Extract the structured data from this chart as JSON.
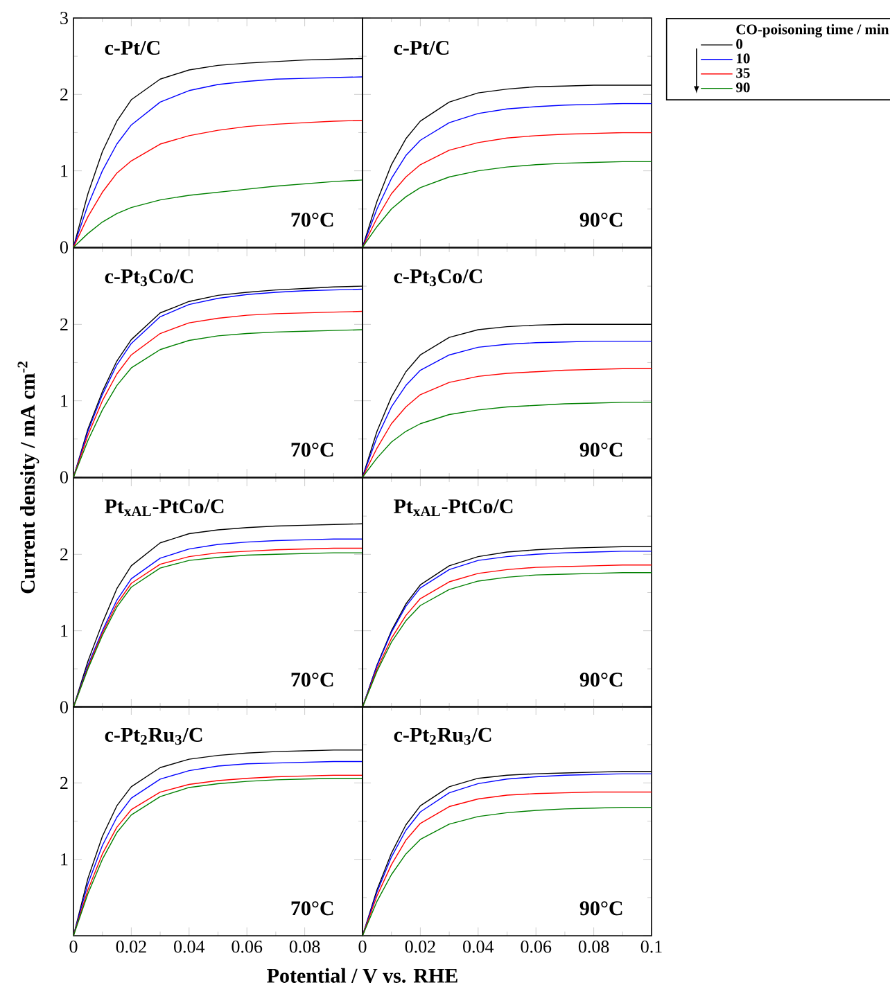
{
  "chart_data": [
    {
      "type": "line",
      "title": "c-Pt/C",
      "annotations": [
        "70°C"
      ],
      "ylabel": null,
      "x": [
        0,
        0.005,
        0.01,
        0.015,
        0.02,
        0.03,
        0.04,
        0.05,
        0.06,
        0.07,
        0.08,
        0.09,
        0.1
      ],
      "xlim": [
        0,
        0.1
      ],
      "ylim": [
        0,
        3
      ],
      "xticks": [
        0,
        0.02,
        0.04,
        0.06,
        0.08,
        0.1
      ],
      "yticks": [
        0,
        1,
        2,
        3
      ],
      "tick_labels": "y",
      "series": [
        {
          "color": "#000000",
          "values": [
            0,
            0.7,
            1.25,
            1.65,
            1.93,
            2.2,
            2.32,
            2.38,
            2.41,
            2.43,
            2.45,
            2.46,
            2.47
          ]
        },
        {
          "color": "#0000ff",
          "values": [
            0,
            0.55,
            1.0,
            1.35,
            1.6,
            1.9,
            2.05,
            2.13,
            2.17,
            2.2,
            2.21,
            2.22,
            2.23
          ]
        },
        {
          "color": "#ff0000",
          "values": [
            0,
            0.4,
            0.72,
            0.97,
            1.13,
            1.35,
            1.46,
            1.53,
            1.58,
            1.61,
            1.63,
            1.65,
            1.66
          ]
        },
        {
          "color": "#008000",
          "values": [
            0,
            0.18,
            0.33,
            0.44,
            0.52,
            0.62,
            0.68,
            0.72,
            0.76,
            0.8,
            0.83,
            0.86,
            0.88
          ]
        }
      ]
    },
    {
      "type": "line",
      "title": "c-Pt/C",
      "annotations": [
        "90°C"
      ],
      "legend": "top right",
      "legend_title": "CO-poisoning time / min",
      "x": [
        0,
        0.005,
        0.01,
        0.015,
        0.02,
        0.03,
        0.04,
        0.05,
        0.06,
        0.07,
        0.08,
        0.09,
        0.1
      ],
      "xlim": [
        0,
        0.1
      ],
      "ylim": [
        0,
        3
      ],
      "xticks": [
        0,
        0.02,
        0.04,
        0.06,
        0.08,
        0.1
      ],
      "yticks": [
        0,
        1,
        2,
        3
      ],
      "tick_labels": false,
      "series": [
        {
          "name": "0",
          "color": "#000000",
          "values": [
            0,
            0.6,
            1.08,
            1.42,
            1.65,
            1.9,
            2.02,
            2.07,
            2.1,
            2.11,
            2.12,
            2.12,
            2.12
          ]
        },
        {
          "name": "10",
          "color": "#0000ff",
          "values": [
            0,
            0.5,
            0.9,
            1.2,
            1.4,
            1.63,
            1.75,
            1.81,
            1.84,
            1.86,
            1.87,
            1.88,
            1.88
          ]
        },
        {
          "name": "35",
          "color": "#ff0000",
          "values": [
            0,
            0.38,
            0.7,
            0.92,
            1.08,
            1.27,
            1.37,
            1.43,
            1.46,
            1.48,
            1.49,
            1.5,
            1.5
          ]
        },
        {
          "name": "90",
          "color": "#008000",
          "values": [
            0,
            0.27,
            0.5,
            0.66,
            0.78,
            0.92,
            1.0,
            1.05,
            1.08,
            1.1,
            1.11,
            1.12,
            1.12
          ]
        }
      ]
    },
    {
      "type": "line",
      "title": "c-Pt$_{3}$Co/C",
      "annotations": [
        "70°C"
      ],
      "ylabel": "Current density / mA cm$^{-2}$",
      "x": [
        0,
        0.005,
        0.01,
        0.015,
        0.02,
        0.03,
        0.04,
        0.05,
        0.06,
        0.07,
        0.08,
        0.09,
        0.1
      ],
      "xlim": [
        0,
        0.1
      ],
      "ylim": [
        0,
        3
      ],
      "xticks": [
        0,
        0.02,
        0.04,
        0.06,
        0.08,
        0.1
      ],
      "yticks": [
        0,
        1,
        2
      ],
      "tick_labels": "y",
      "series": [
        {
          "color": "#000000",
          "values": [
            0,
            0.63,
            1.12,
            1.52,
            1.8,
            2.15,
            2.3,
            2.38,
            2.42,
            2.45,
            2.47,
            2.49,
            2.5
          ]
        },
        {
          "color": "#0000ff",
          "values": [
            0,
            0.6,
            1.08,
            1.47,
            1.75,
            2.1,
            2.26,
            2.34,
            2.39,
            2.42,
            2.44,
            2.45,
            2.46
          ]
        },
        {
          "color": "#ff0000",
          "values": [
            0,
            0.55,
            1.0,
            1.35,
            1.6,
            1.88,
            2.02,
            2.08,
            2.12,
            2.14,
            2.15,
            2.16,
            2.17
          ]
        },
        {
          "color": "#008000",
          "values": [
            0,
            0.48,
            0.88,
            1.2,
            1.43,
            1.67,
            1.79,
            1.85,
            1.88,
            1.9,
            1.91,
            1.92,
            1.93
          ]
        }
      ]
    },
    {
      "type": "line",
      "title": "c-Pt$_{3}$Co/C",
      "annotations": [
        "90°C"
      ],
      "x": [
        0,
        0.005,
        0.01,
        0.015,
        0.02,
        0.03,
        0.04,
        0.05,
        0.06,
        0.07,
        0.08,
        0.09,
        0.1
      ],
      "xlim": [
        0,
        0.1
      ],
      "ylim": [
        0,
        3
      ],
      "xticks": [
        0,
        0.02,
        0.04,
        0.06,
        0.08,
        0.1
      ],
      "yticks": [
        0,
        1,
        2,
        3
      ],
      "tick_labels": false,
      "series": [
        {
          "color": "#000000",
          "values": [
            0,
            0.6,
            1.05,
            1.38,
            1.6,
            1.83,
            1.93,
            1.97,
            1.99,
            2.0,
            2.0,
            2.0,
            2.0
          ]
        },
        {
          "color": "#0000ff",
          "values": [
            0,
            0.52,
            0.92,
            1.2,
            1.4,
            1.6,
            1.7,
            1.74,
            1.76,
            1.77,
            1.78,
            1.78,
            1.78
          ]
        },
        {
          "color": "#ff0000",
          "values": [
            0,
            0.38,
            0.7,
            0.92,
            1.08,
            1.24,
            1.32,
            1.36,
            1.38,
            1.4,
            1.41,
            1.42,
            1.42
          ]
        },
        {
          "color": "#008000",
          "values": [
            0,
            0.25,
            0.46,
            0.6,
            0.7,
            0.82,
            0.88,
            0.92,
            0.94,
            0.96,
            0.97,
            0.98,
            0.98
          ]
        }
      ]
    },
    {
      "type": "line",
      "title": "Pt$_{xAL}$-PtCo/C",
      "annotations": [
        "70°C"
      ],
      "x": [
        0,
        0.005,
        0.01,
        0.015,
        0.02,
        0.03,
        0.04,
        0.05,
        0.06,
        0.07,
        0.08,
        0.09,
        0.1
      ],
      "xlim": [
        0,
        0.1
      ],
      "ylim": [
        0,
        3
      ],
      "xticks": [
        0,
        0.02,
        0.04,
        0.06,
        0.08,
        0.1
      ],
      "yticks": [
        0,
        1,
        2
      ],
      "tick_labels": "y",
      "series": [
        {
          "color": "#000000",
          "values": [
            0,
            0.6,
            1.1,
            1.55,
            1.85,
            2.15,
            2.27,
            2.32,
            2.35,
            2.37,
            2.38,
            2.39,
            2.4
          ]
        },
        {
          "color": "#0000ff",
          "values": [
            0,
            0.55,
            1.0,
            1.4,
            1.68,
            1.95,
            2.07,
            2.13,
            2.16,
            2.18,
            2.19,
            2.2,
            2.2
          ]
        },
        {
          "color": "#ff0000",
          "values": [
            0,
            0.52,
            0.97,
            1.35,
            1.62,
            1.87,
            1.97,
            2.02,
            2.04,
            2.06,
            2.07,
            2.08,
            2.08
          ]
        },
        {
          "color": "#008000",
          "values": [
            0,
            0.5,
            0.94,
            1.31,
            1.57,
            1.82,
            1.92,
            1.96,
            1.99,
            2.0,
            2.01,
            2.02,
            2.02
          ]
        }
      ]
    },
    {
      "type": "line",
      "title": "Pt$_{xAL}$-PtCo/C",
      "annotations": [
        "90°C"
      ],
      "x": [
        0,
        0.005,
        0.01,
        0.015,
        0.02,
        0.03,
        0.04,
        0.05,
        0.06,
        0.07,
        0.08,
        0.09,
        0.1
      ],
      "xlim": [
        0,
        0.1
      ],
      "ylim": [
        0,
        3
      ],
      "xticks": [
        0,
        0.02,
        0.04,
        0.06,
        0.08,
        0.1
      ],
      "yticks": [
        0,
        1,
        2,
        3
      ],
      "tick_labels": false,
      "series": [
        {
          "color": "#000000",
          "values": [
            0,
            0.55,
            1.0,
            1.35,
            1.6,
            1.85,
            1.97,
            2.03,
            2.06,
            2.08,
            2.09,
            2.1,
            2.1
          ]
        },
        {
          "color": "#0000ff",
          "values": [
            0,
            0.54,
            0.98,
            1.32,
            1.56,
            1.8,
            1.92,
            1.97,
            2.0,
            2.02,
            2.03,
            2.04,
            2.04
          ]
        },
        {
          "color": "#ff0000",
          "values": [
            0,
            0.5,
            0.9,
            1.2,
            1.42,
            1.64,
            1.75,
            1.8,
            1.83,
            1.84,
            1.85,
            1.86,
            1.86
          ]
        },
        {
          "color": "#008000",
          "values": [
            0,
            0.47,
            0.85,
            1.13,
            1.33,
            1.54,
            1.65,
            1.7,
            1.73,
            1.74,
            1.75,
            1.76,
            1.76
          ]
        }
      ]
    },
    {
      "type": "line",
      "title": "c-Pt$_{2}$Ru$_{3}$/C",
      "annotations": [
        "70°C"
      ],
      "xlabel": "Potential / V vs. RHE",
      "x": [
        0,
        0.005,
        0.01,
        0.015,
        0.02,
        0.03,
        0.04,
        0.05,
        0.06,
        0.07,
        0.08,
        0.09,
        0.1
      ],
      "xlim": [
        0,
        0.1
      ],
      "ylim": [
        0,
        3
      ],
      "xticks": [
        0,
        0.02,
        0.04,
        0.06,
        0.08
      ],
      "yticks": [
        1,
        2
      ],
      "series": [
        {
          "color": "#000000",
          "values": [
            0,
            0.75,
            1.3,
            1.7,
            1.95,
            2.2,
            2.31,
            2.36,
            2.39,
            2.41,
            2.42,
            2.43,
            2.43
          ]
        },
        {
          "color": "#0000ff",
          "values": [
            0,
            0.68,
            1.18,
            1.55,
            1.8,
            2.05,
            2.16,
            2.22,
            2.25,
            2.26,
            2.27,
            2.28,
            2.28
          ]
        },
        {
          "color": "#ff0000",
          "values": [
            0,
            0.6,
            1.07,
            1.42,
            1.65,
            1.88,
            1.98,
            2.03,
            2.06,
            2.08,
            2.09,
            2.1,
            2.1
          ]
        },
        {
          "color": "#008000",
          "values": [
            0,
            0.55,
            1.0,
            1.35,
            1.58,
            1.82,
            1.94,
            1.99,
            2.02,
            2.04,
            2.05,
            2.06,
            2.06
          ]
        }
      ]
    },
    {
      "type": "line",
      "title": "c-Pt$_{2}$Ru$_{3}$/C",
      "annotations": [
        "90°C"
      ],
      "x": [
        0,
        0.005,
        0.01,
        0.015,
        0.02,
        0.03,
        0.04,
        0.05,
        0.06,
        0.07,
        0.08,
        0.09,
        0.1
      ],
      "xlim": [
        0,
        0.1
      ],
      "ylim": [
        0,
        3
      ],
      "xticks": [
        0,
        0.02,
        0.04,
        0.06,
        0.08,
        0.1
      ],
      "yticks": [
        0,
        1,
        2,
        3
      ],
      "tick_labels": "x",
      "series": [
        {
          "color": "#000000",
          "values": [
            0,
            0.6,
            1.08,
            1.45,
            1.7,
            1.95,
            2.06,
            2.1,
            2.12,
            2.13,
            2.14,
            2.15,
            2.15
          ]
        },
        {
          "color": "#0000ff",
          "values": [
            0,
            0.57,
            1.03,
            1.38,
            1.62,
            1.87,
            1.99,
            2.05,
            2.08,
            2.1,
            2.11,
            2.12,
            2.12
          ]
        },
        {
          "color": "#ff0000",
          "values": [
            0,
            0.52,
            0.93,
            1.25,
            1.47,
            1.69,
            1.79,
            1.84,
            1.86,
            1.87,
            1.88,
            1.88,
            1.88
          ]
        },
        {
          "color": "#008000",
          "values": [
            0,
            0.45,
            0.8,
            1.07,
            1.26,
            1.46,
            1.56,
            1.61,
            1.64,
            1.66,
            1.67,
            1.68,
            1.68
          ]
        }
      ]
    }
  ]
}
